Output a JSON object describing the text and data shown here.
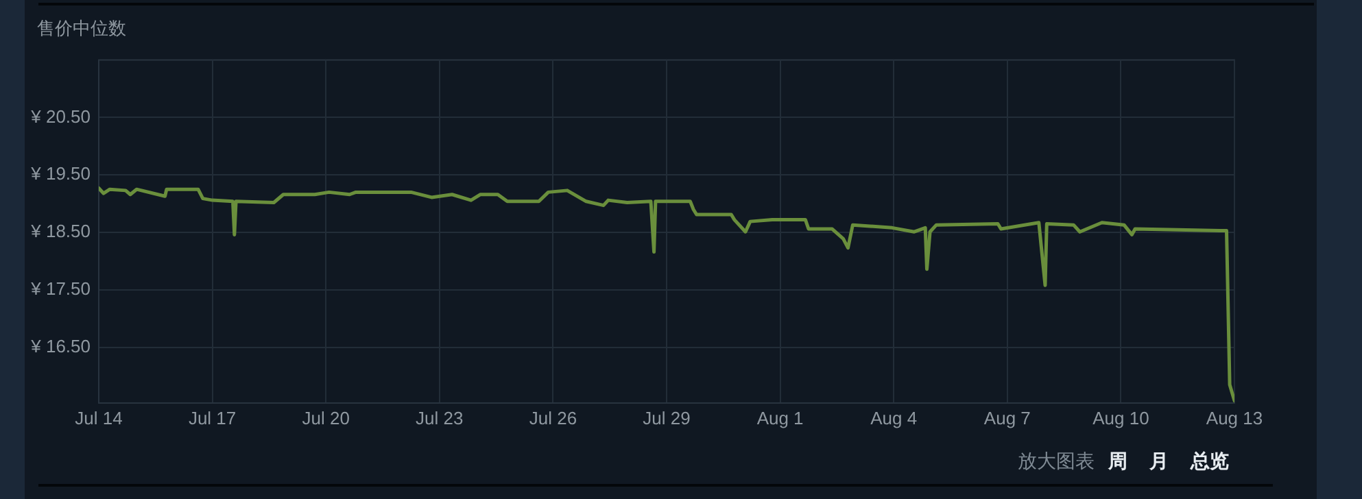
{
  "chart_data": {
    "type": "line",
    "title": "售价中位数",
    "x": [
      "--07-14T00:00",
      "--07-14T03:00",
      "--07-14T07:00",
      "--07-14T17:00",
      "--07-14T20:00",
      "--07-15T00:00",
      "--07-15T18:00",
      "--07-15T19:00",
      "--07-16T15:00",
      "--07-16T18:00",
      "--07-17T00:00",
      "--07-17T13:00",
      "--07-17T14:00",
      "--07-17T15:00",
      "--07-18T15:00",
      "--07-18T21:00",
      "--07-19T17:00",
      "--07-20T02:00",
      "--07-20T15:00",
      "--07-20T19:00",
      "--07-22T06:00",
      "--07-22T19:00",
      "--07-23T08:00",
      "--07-23T20:00",
      "--07-24T02:00",
      "--07-24T13:00",
      "--07-24T19:00",
      "--07-25T15:00",
      "--07-25T21:00",
      "--07-26T09:00",
      "--07-26T21:00",
      "--07-27T08:00",
      "--07-27T11:00",
      "--07-27T23:00",
      "--07-28T14:00",
      "--07-28T16:00",
      "--07-28T17:00",
      "--07-29T15:00",
      "--07-29T17:00",
      "--07-29T19:00",
      "--07-30T17:00",
      "--07-30T19:00",
      "--07-31T02:00",
      "--07-31T05:00",
      "--07-31T19:00",
      "--08-01T16:00",
      "--08-01T18:00",
      "--08-02T09:00",
      "--08-02T16:00",
      "--08-02T19:00",
      "--08-02T22:00",
      "--08-03T23:00",
      "--08-04T13:00",
      "--08-04T20:00",
      "--08-04T21:00",
      "--08-04T23:00",
      "--08-05T03:00",
      "--08-06T18:00",
      "--08-06T20:00",
      "--08-07T20:00",
      "--08-08T00:00",
      "--08-08T01:00",
      "--08-08T18:00",
      "--08-08T22:00",
      "--08-09T12:00",
      "--08-10T02:00",
      "--08-10T07:00",
      "--08-10T09:00",
      "--08-12T15:00",
      "--08-12T19:00",
      "--08-12T21:00",
      "--08-13T00:00"
    ],
    "series": [
      {
        "color": "#6a8f3c",
        "values": [
          19.27,
          19.18,
          19.25,
          19.23,
          19.16,
          19.25,
          19.13,
          19.25,
          19.25,
          19.09,
          19.06,
          19.04,
          18.46,
          19.04,
          19.02,
          19.16,
          19.16,
          19.2,
          19.16,
          19.2,
          19.2,
          19.11,
          19.16,
          19.06,
          19.16,
          19.16,
          19.04,
          19.04,
          19.2,
          19.23,
          19.04,
          18.97,
          19.06,
          19.02,
          19.04,
          18.16,
          19.04,
          19.04,
          18.9,
          18.81,
          18.81,
          18.72,
          18.51,
          18.69,
          18.72,
          18.72,
          18.56,
          18.56,
          18.39,
          18.23,
          18.63,
          18.58,
          18.51,
          18.58,
          17.86,
          18.51,
          18.63,
          18.65,
          18.56,
          18.67,
          17.58,
          18.65,
          18.63,
          18.51,
          18.67,
          18.63,
          18.46,
          18.56,
          18.53,
          18.53,
          15.85,
          15.57
        ]
      }
    ],
    "xlim": [
      "--07-14",
      "--08-13"
    ],
    "xticks": [
      {
        "value": "--07-14",
        "label": "Jul 14"
      },
      {
        "value": "--07-17",
        "label": "Jul 17"
      },
      {
        "value": "--07-20",
        "label": "Jul 20"
      },
      {
        "value": "--07-23",
        "label": "Jul 23"
      },
      {
        "value": "--07-26",
        "label": "Jul 26"
      },
      {
        "value": "--07-29",
        "label": "Jul 29"
      },
      {
        "value": "--08-01",
        "label": "Aug 1"
      },
      {
        "value": "--08-04",
        "label": "Aug 4"
      },
      {
        "value": "--08-07",
        "label": "Aug 7"
      },
      {
        "value": "--08-10",
        "label": "Aug 10"
      },
      {
        "value": "--08-13",
        "label": "Aug 13"
      }
    ],
    "ylim": [
      15.53,
      21.5
    ],
    "yticks": [
      {
        "value": 16.5,
        "label": "¥ 16.50"
      },
      {
        "value": 17.5,
        "label": "¥ 17.50"
      },
      {
        "value": 18.5,
        "label": "¥ 18.50"
      },
      {
        "value": 19.5,
        "label": "¥ 19.50"
      },
      {
        "value": 20.5,
        "label": "¥ 20.50"
      }
    ],
    "grid": true,
    "annotations": [
      "放大图表",
      "周",
      "月",
      "总览"
    ]
  }
}
